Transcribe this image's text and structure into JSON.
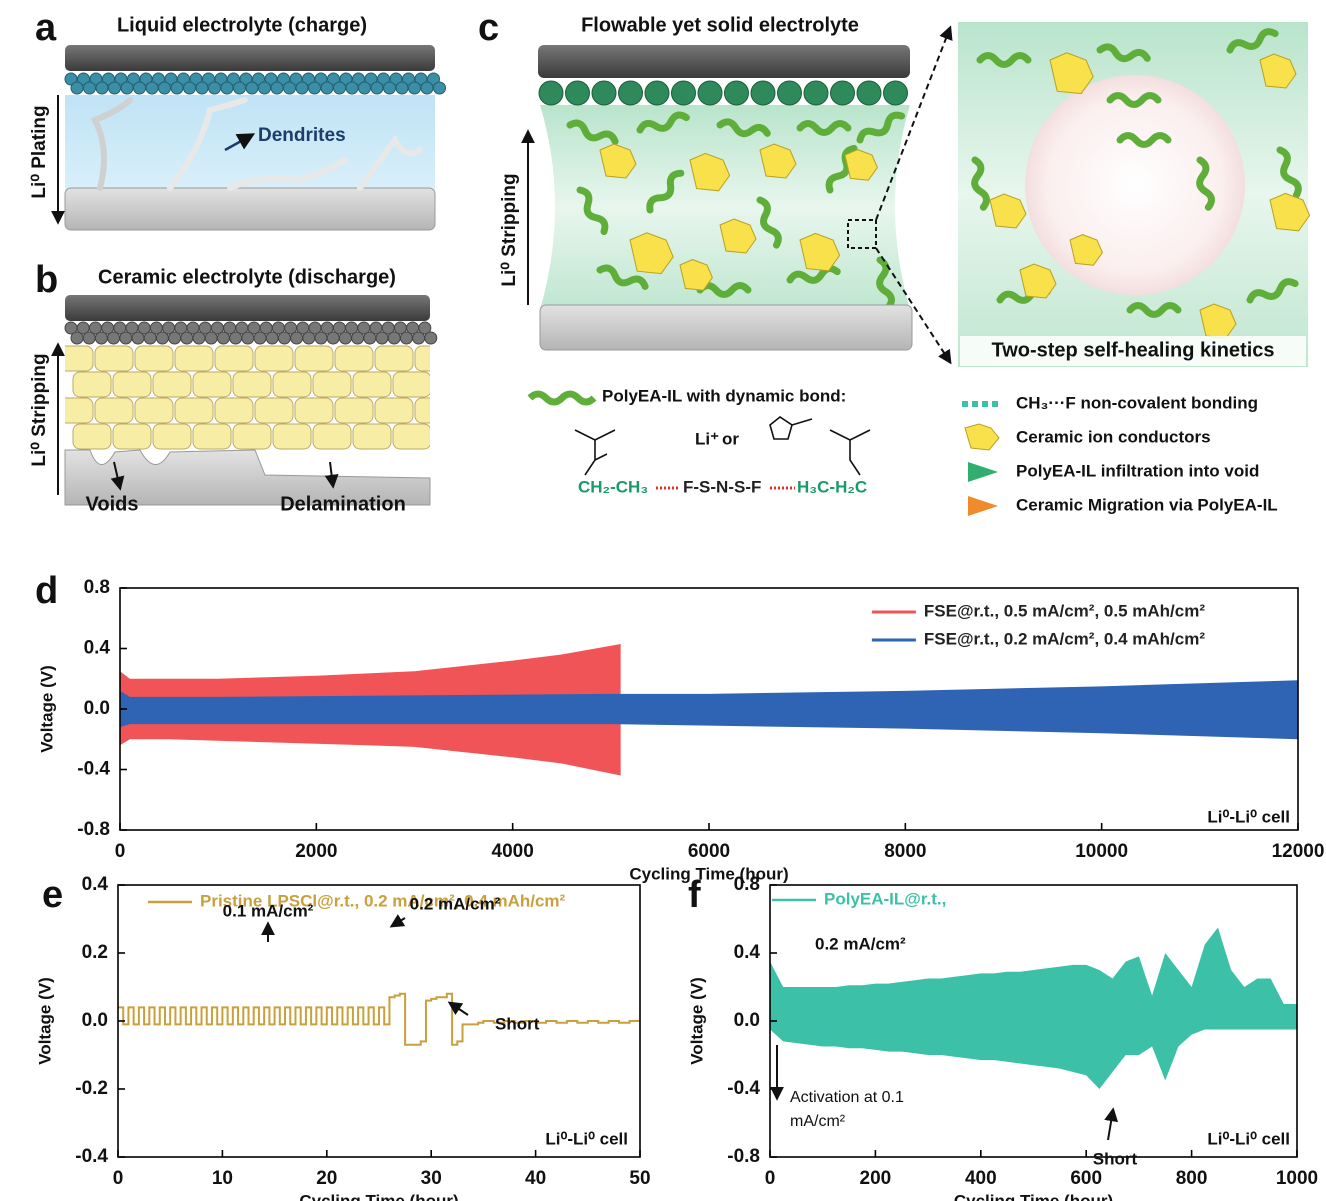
{
  "figure": {
    "a": {
      "letter": "a",
      "title": "Liquid electrolyte (charge)",
      "dendrites": "Dendrites",
      "direction": "Li⁰ Plating"
    },
    "b": {
      "letter": "b",
      "title": "Ceramic electrolyte (discharge)",
      "direction": "Li⁰ Stripping",
      "voids": "Voids",
      "delamination": "Delamination"
    },
    "c": {
      "letter": "c",
      "title": "Flowable yet solid electrolyte",
      "direction": "Li⁰ Stripping",
      "inset_caption": "Two-step self-healing kinetics",
      "polymer": "PolyEA-IL with dynamic bond:",
      "cation": "Li⁺",
      "or": "or",
      "left_chain": "CH₂-CH₃",
      "anion": "F-S-N-S-F",
      "right_chain": "H₃C-H₂C",
      "legend": [
        "CH₃···F non-covalent bonding",
        "Ceramic ion conductors",
        "PolyEA-IL infiltration into void",
        "Ceramic Migration via PolyEA-IL"
      ]
    }
  },
  "chart_data": [
    {
      "type": "band",
      "panel_label": "d",
      "x_label": "Cycling Time (hour)",
      "y_label": "Voltage (V)",
      "xlim": [
        0,
        12000
      ],
      "xticks": [
        0,
        2000,
        4000,
        6000,
        8000,
        10000,
        12000
      ],
      "ylim": [
        -0.8,
        0.8
      ],
      "yticks": [
        -0.8,
        -0.4,
        {
          "value": 0,
          "label": "0.0"
        },
        0.4,
        0.8
      ],
      "legend": "upper right",
      "series": [
        {
          "name": "FSE@r.t., 0.5 mA/cm², 0.5 mAh/cm²",
          "color": "#f05456",
          "x": [
            0,
            100,
            500,
            1000,
            2000,
            3000,
            4000,
            4500,
            5100
          ],
          "values": [
            0.25,
            0.2,
            0.2,
            0.2,
            0.22,
            0.25,
            0.32,
            0.36,
            0.43
          ],
          "lower": [
            -0.24,
            -0.2,
            -0.2,
            -0.21,
            -0.23,
            -0.25,
            -0.32,
            -0.36,
            -0.44
          ]
        },
        {
          "name": "FSE@r.t., 0.2 mA/cm², 0.4 mAh/cm²",
          "color": "#2f63b3",
          "x": [
            0,
            100,
            1000,
            3000,
            5000,
            6000,
            8000,
            10000,
            12000
          ],
          "values": [
            0.12,
            0.08,
            0.08,
            0.09,
            0.1,
            0.1,
            0.12,
            0.15,
            0.19
          ],
          "lower": [
            -0.12,
            -0.1,
            -0.1,
            -0.1,
            -0.1,
            -0.11,
            -0.13,
            -0.16,
            -0.2
          ]
        }
      ],
      "annotations": [
        "Li⁰-Li⁰ cell"
      ]
    },
    {
      "type": "line",
      "step": true,
      "panel_label": "e",
      "x_label": "Cycling Time (hour)",
      "y_label": "Voltage (V)",
      "xlim": [
        0,
        50
      ],
      "xticks": [
        0,
        10,
        20,
        30,
        40,
        50
      ],
      "ylim": [
        -0.4,
        0.4
      ],
      "yticks": [
        -0.4,
        -0.2,
        {
          "value": 0,
          "label": "0.0"
        },
        0.2,
        0.4
      ],
      "legend": "upper left",
      "series": [
        {
          "name": "Pristine LPSCl@r.t., 0.2 mA/cm², 0.4 mAh/cm²",
          "color": "#c9a03c",
          "x": [
            0,
            0.5,
            1,
            1.5,
            2,
            2.5,
            3,
            3.5,
            4,
            4.5,
            5,
            5.5,
            6,
            6.5,
            7,
            7.5,
            8,
            8.5,
            9,
            9.5,
            10,
            10.5,
            11,
            11.5,
            12,
            12.5,
            13,
            13.5,
            14,
            14.5,
            15,
            15.5,
            16,
            16.5,
            17,
            17.5,
            18,
            18.5,
            19,
            19.5,
            20,
            20.5,
            21,
            21.5,
            22,
            22.5,
            23,
            23.5,
            24,
            24.5,
            25,
            25.5,
            26,
            26.5,
            27,
            27.5,
            28,
            28.5,
            29,
            29.5,
            30,
            30.5,
            31,
            31.5,
            32,
            32.5,
            33,
            33.5,
            34,
            34.5,
            35,
            35.5,
            36,
            36.5,
            37,
            37.5,
            38,
            38.5,
            39,
            39.5,
            40,
            40.5,
            41,
            41.5,
            42,
            42.5,
            43,
            43.5,
            44,
            44.5,
            45,
            45.5,
            46,
            46.5,
            47,
            47.5,
            48,
            48.5,
            49,
            49.5,
            50
          ],
          "values": [
            0.04,
            -0.01,
            0.04,
            -0.01,
            0.04,
            -0.01,
            0.04,
            -0.01,
            0.04,
            -0.01,
            0.04,
            -0.01,
            0.04,
            -0.01,
            0.04,
            -0.01,
            0.04,
            -0.01,
            0.04,
            -0.01,
            0.04,
            -0.01,
            0.04,
            -0.01,
            0.04,
            -0.01,
            0.04,
            -0.01,
            0.04,
            -0.01,
            0.04,
            -0.01,
            0.04,
            -0.01,
            0.04,
            -0.01,
            0.04,
            -0.01,
            0.04,
            -0.01,
            0.04,
            -0.01,
            0.04,
            -0.01,
            0.04,
            -0.01,
            0.04,
            -0.01,
            0.04,
            -0.01,
            0.04,
            -0.01,
            0.07,
            0.075,
            0.08,
            -0.07,
            -0.07,
            -0.07,
            -0.06,
            0.06,
            0.065,
            0.07,
            0.07,
            0.08,
            -0.07,
            -0.06,
            -0.01,
            -0.01,
            -0.01,
            -0.005,
            0.0,
            0.0,
            -0.005,
            -0.005,
            0.0,
            0.0,
            -0.005,
            -0.005,
            0.0,
            0.0,
            -0.005,
            -0.005,
            0.0,
            0.0,
            -0.005,
            -0.005,
            0.0,
            0.0,
            -0.005,
            -0.005,
            0.0,
            0.0,
            -0.005,
            -0.005,
            0.0,
            0.0,
            -0.005,
            -0.005,
            0.0,
            0.0,
            0.0
          ]
        }
      ],
      "annotations": [
        "0.1 mA/cm²",
        "0.2 mA/cm²",
        "Short",
        "Li⁰-Li⁰ cell"
      ]
    },
    {
      "type": "band",
      "panel_label": "f",
      "x_label": "Cycling Time (hour)",
      "y_label": "Voltage (V)",
      "xlim": [
        0,
        1000
      ],
      "xticks": [
        0,
        200,
        400,
        600,
        800,
        1000
      ],
      "ylim": [
        -0.8,
        0.8
      ],
      "yticks": [
        -0.8,
        -0.4,
        {
          "value": 0,
          "label": "0.0"
        },
        0.4,
        0.8
      ],
      "legend": "upper left",
      "series": [
        {
          "name": "PolyEA-IL@r.t.,",
          "color": "#3cc1a8",
          "x": [
            0,
            25,
            50,
            75,
            100,
            125,
            150,
            175,
            200,
            225,
            250,
            275,
            300,
            325,
            350,
            375,
            400,
            425,
            450,
            475,
            500,
            525,
            550,
            575,
            600,
            625,
            650,
            675,
            700,
            725,
            750,
            775,
            800,
            825,
            850,
            875,
            900,
            925,
            950,
            975,
            1000
          ],
          "values": [
            0.35,
            0.2,
            0.2,
            0.2,
            0.2,
            0.2,
            0.21,
            0.21,
            0.22,
            0.22,
            0.23,
            0.24,
            0.25,
            0.25,
            0.26,
            0.27,
            0.28,
            0.28,
            0.29,
            0.29,
            0.3,
            0.31,
            0.32,
            0.33,
            0.33,
            0.3,
            0.25,
            0.35,
            0.38,
            0.15,
            0.4,
            0.3,
            0.2,
            0.45,
            0.55,
            0.3,
            0.2,
            0.25,
            0.25,
            0.1,
            0.1
          ],
          "lower": [
            -0.05,
            -0.12,
            -0.13,
            -0.14,
            -0.15,
            -0.15,
            -0.16,
            -0.16,
            -0.17,
            -0.18,
            -0.18,
            -0.19,
            -0.2,
            -0.2,
            -0.21,
            -0.22,
            -0.23,
            -0.23,
            -0.24,
            -0.25,
            -0.26,
            -0.27,
            -0.28,
            -0.3,
            -0.32,
            -0.4,
            -0.3,
            -0.2,
            -0.2,
            -0.15,
            -0.35,
            -0.15,
            -0.08,
            -0.05,
            -0.05,
            -0.05,
            -0.05,
            -0.05,
            -0.05,
            -0.05,
            -0.05
          ]
        }
      ],
      "annotations": [
        "0.2 mA/cm²",
        "Activation at 0.1",
        "mA/cm²",
        "Short",
        "Li⁰-Li⁰ cell"
      ]
    }
  ]
}
